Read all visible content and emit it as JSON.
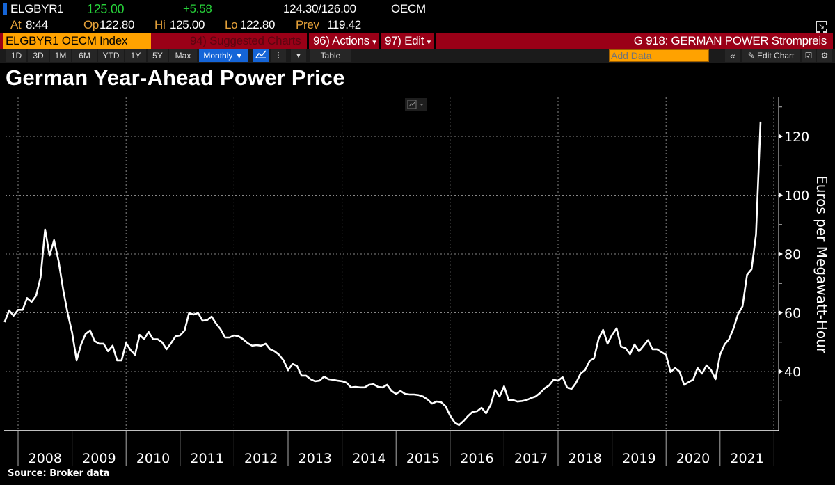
{
  "quote": {
    "ticker": "ELGBYR1",
    "last": "125.00",
    "change": "+5.58",
    "bid_ask": "124.30/126.00",
    "source": "OECM",
    "at_label": "At",
    "at_value": "8:44",
    "open_label": "Op",
    "open_value": "122.80",
    "high_label": "Hi",
    "high_value": "125.00",
    "low_label": "Lo",
    "low_value": "122.80",
    "prev_label": "Prev",
    "prev_value": "119.42"
  },
  "menubar": {
    "security": "ELGBYR1 OECM Index",
    "suggested": "94) Suggested Charts",
    "actions": "96) Actions",
    "edit": "97) Edit",
    "dropdown_glyph": "▾",
    "chart_name": "G 918: GERMAN POWER Strompreis"
  },
  "toolbar": {
    "ranges": [
      "1D",
      "3D",
      "1M",
      "6M",
      "YTD",
      "1Y",
      "5Y",
      "Max"
    ],
    "frequency": "Monthly ▼",
    "table": "Table",
    "add_data_placeholder": "Add Data",
    "collapse": "«",
    "edit_chart": "Edit Chart"
  },
  "colors": {
    "accent_orange": "#ffa200",
    "menu_red": "#9a0017",
    "up_green": "#27d33a",
    "active_blue": "#1565d8",
    "line": "#ffffff"
  },
  "chart_data": {
    "type": "line",
    "title": "German Year-Ahead Power Price",
    "ylabel": "Euros per Megawatt-Hour",
    "xlabel": "",
    "source": "Source: Broker data",
    "y_axis_side": "right",
    "yticks": [
      40,
      60,
      80,
      100,
      120
    ],
    "ylim": [
      19.6,
      133
    ],
    "xticks": [
      "2008",
      "2009",
      "2010",
      "2011",
      "2012",
      "2013",
      "2014",
      "2015",
      "2016",
      "2017",
      "2018",
      "2019",
      "2020",
      "2021"
    ],
    "grid": true,
    "x": [
      "2007-10",
      "2007-11",
      "2007-12",
      "2008-01",
      "2008-02",
      "2008-03",
      "2008-04",
      "2008-05",
      "2008-06",
      "2008-07",
      "2008-08",
      "2008-09",
      "2008-10",
      "2008-11",
      "2008-12",
      "2009-01",
      "2009-02",
      "2009-03",
      "2009-04",
      "2009-05",
      "2009-06",
      "2009-07",
      "2009-08",
      "2009-09",
      "2009-10",
      "2009-11",
      "2009-12",
      "2010-01",
      "2010-02",
      "2010-03",
      "2010-04",
      "2010-05",
      "2010-06",
      "2010-07",
      "2010-08",
      "2010-09",
      "2010-10",
      "2010-11",
      "2010-12",
      "2011-01",
      "2011-02",
      "2011-03",
      "2011-04",
      "2011-05",
      "2011-06",
      "2011-07",
      "2011-08",
      "2011-09",
      "2011-10",
      "2011-11",
      "2011-12",
      "2012-01",
      "2012-02",
      "2012-03",
      "2012-04",
      "2012-05",
      "2012-06",
      "2012-07",
      "2012-08",
      "2012-09",
      "2012-10",
      "2012-11",
      "2012-12",
      "2013-01",
      "2013-02",
      "2013-03",
      "2013-04",
      "2013-05",
      "2013-06",
      "2013-07",
      "2013-08",
      "2013-09",
      "2013-10",
      "2013-11",
      "2013-12",
      "2014-01",
      "2014-02",
      "2014-03",
      "2014-04",
      "2014-05",
      "2014-06",
      "2014-07",
      "2014-08",
      "2014-09",
      "2014-10",
      "2014-11",
      "2014-12",
      "2015-01",
      "2015-02",
      "2015-03",
      "2015-04",
      "2015-05",
      "2015-06",
      "2015-07",
      "2015-08",
      "2015-09",
      "2015-10",
      "2015-11",
      "2015-12",
      "2016-01",
      "2016-02",
      "2016-03",
      "2016-04",
      "2016-05",
      "2016-06",
      "2016-07",
      "2016-08",
      "2016-09",
      "2016-10",
      "2016-11",
      "2016-12",
      "2017-01",
      "2017-02",
      "2017-03",
      "2017-04",
      "2017-05",
      "2017-06",
      "2017-07",
      "2017-08",
      "2017-09",
      "2017-10",
      "2017-11",
      "2017-12",
      "2018-01",
      "2018-02",
      "2018-03",
      "2018-04",
      "2018-05",
      "2018-06",
      "2018-07",
      "2018-08",
      "2018-09",
      "2018-10",
      "2018-11",
      "2018-12",
      "2019-01",
      "2019-02",
      "2019-03",
      "2019-04",
      "2019-05",
      "2019-06",
      "2019-07",
      "2019-08",
      "2019-09",
      "2019-10",
      "2019-11",
      "2019-12",
      "2020-01",
      "2020-02",
      "2020-03",
      "2020-04",
      "2020-05",
      "2020-06",
      "2020-07",
      "2020-08",
      "2020-09",
      "2020-10",
      "2020-11",
      "2020-12",
      "2021-01",
      "2021-02",
      "2021-03",
      "2021-04",
      "2021-05",
      "2021-06",
      "2021-07",
      "2021-08",
      "2021-09",
      "2021-10"
    ],
    "values": [
      56.8,
      60.8,
      59,
      61,
      61,
      65,
      63.7,
      65.8,
      72,
      88.3,
      79.5,
      84.7,
      77.6,
      68,
      60,
      53.3,
      43.8,
      49.2,
      52.8,
      54,
      50.4,
      49.5,
      49.5,
      46.9,
      48.8,
      43.8,
      43.8,
      49.7,
      47.3,
      45.7,
      52.5,
      51,
      53.5,
      51,
      51,
      50,
      47.6,
      49.7,
      52,
      52.3,
      54,
      59.9,
      59.4,
      59.9,
      57.3,
      57.5,
      58.7,
      56.3,
      54.4,
      51.6,
      51.6,
      52.3,
      52,
      51,
      49.7,
      48.8,
      49,
      48.8,
      49.5,
      47.6,
      46.9,
      45.7,
      43.8,
      40.5,
      42.6,
      41.9,
      38.6,
      38.6,
      37.4,
      36.7,
      36.9,
      38.3,
      37.4,
      37.2,
      36.9,
      36.7,
      36.2,
      34.6,
      34.8,
      34.6,
      34.6,
      35.5,
      35.7,
      34.8,
      34.6,
      35.5,
      33.4,
      32.4,
      33.4,
      32.4,
      32.2,
      32.2,
      32,
      31.5,
      30.5,
      29.1,
      29.8,
      29.6,
      28.2,
      25.1,
      22.7,
      21.8,
      23.2,
      24.9,
      26.3,
      26.5,
      27.7,
      25.8,
      28.6,
      33.8,
      31.5,
      35,
      30.3,
      30.3,
      29.8,
      30,
      30.3,
      31,
      31.5,
      32.7,
      34.3,
      35.3,
      37.2,
      36.9,
      38.1,
      34.6,
      34.1,
      36.2,
      39.3,
      40.5,
      43.6,
      44.5,
      51.1,
      54.2,
      49.5,
      52.5,
      54.7,
      48.5,
      48,
      45.9,
      49.2,
      46.9,
      48.8,
      50.7,
      47.6,
      47.6,
      46.6,
      45.7,
      39.8,
      41.2,
      40,
      35.5,
      36.4,
      37.2,
      41.2,
      39.3,
      42.1,
      40.5,
      37.4,
      45.7,
      49.2,
      51,
      54.7,
      59.6,
      62.2,
      72.9,
      74.8,
      86.6,
      125
    ]
  }
}
